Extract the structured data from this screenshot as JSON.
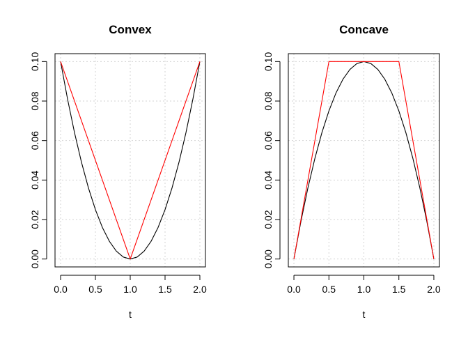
{
  "chart_data": [
    {
      "type": "line",
      "title": "Convex",
      "xlabel": "t",
      "ylabel": "",
      "xlim": [
        -0.08,
        2.08
      ],
      "ylim": [
        -0.004,
        0.104
      ],
      "xticks": [
        "0.0",
        "0.5",
        "1.0",
        "1.5",
        "2.0"
      ],
      "xtick_values": [
        0,
        0.5,
        1,
        1.5,
        2
      ],
      "yticks": [
        "0.00",
        "0.02",
        "0.04",
        "0.06",
        "0.08",
        "0.10"
      ],
      "ytick_values": [
        0,
        0.02,
        0.04,
        0.06,
        0.08,
        0.1
      ],
      "grid": true,
      "series": [
        {
          "color": "#000000",
          "x": [
            0,
            0.1,
            0.2,
            0.3,
            0.4,
            0.5,
            0.6,
            0.7,
            0.8,
            0.9,
            1.0,
            1.1,
            1.2,
            1.3,
            1.4,
            1.5,
            1.6,
            1.7,
            1.8,
            1.9,
            2.0
          ],
          "y": [
            0.1,
            0.081,
            0.064,
            0.049,
            0.036,
            0.025,
            0.016,
            0.009,
            0.004,
            0.001,
            0,
            0.001,
            0.004,
            0.009,
            0.016,
            0.025,
            0.036,
            0.049,
            0.064,
            0.081,
            0.1
          ]
        },
        {
          "color": "#ff0000",
          "x": [
            0,
            1,
            2
          ],
          "y": [
            0.1,
            0,
            0.1
          ]
        }
      ]
    },
    {
      "type": "line",
      "title": "Concave",
      "xlabel": "t",
      "ylabel": "",
      "xlim": [
        -0.08,
        2.08
      ],
      "ylim": [
        -0.004,
        0.104
      ],
      "xticks": [
        "0.0",
        "0.5",
        "1.0",
        "1.5",
        "2.0"
      ],
      "xtick_values": [
        0,
        0.5,
        1,
        1.5,
        2
      ],
      "yticks": [
        "0.00",
        "0.02",
        "0.04",
        "0.06",
        "0.08",
        "0.10"
      ],
      "ytick_values": [
        0,
        0.02,
        0.04,
        0.06,
        0.08,
        0.1
      ],
      "grid": true,
      "series": [
        {
          "color": "#000000",
          "x": [
            0,
            0.1,
            0.2,
            0.3,
            0.4,
            0.5,
            0.6,
            0.7,
            0.8,
            0.9,
            1.0,
            1.1,
            1.2,
            1.3,
            1.4,
            1.5,
            1.6,
            1.7,
            1.8,
            1.9,
            2.0
          ],
          "y": [
            0,
            0.019,
            0.036,
            0.051,
            0.064,
            0.075,
            0.084,
            0.091,
            0.096,
            0.099,
            0.1,
            0.099,
            0.096,
            0.091,
            0.084,
            0.075,
            0.064,
            0.051,
            0.036,
            0.019,
            0
          ]
        },
        {
          "color": "#ff0000",
          "x": [
            0,
            0.5,
            1.5,
            2
          ],
          "y": [
            0,
            0.1,
            0.1,
            0
          ]
        }
      ]
    }
  ]
}
